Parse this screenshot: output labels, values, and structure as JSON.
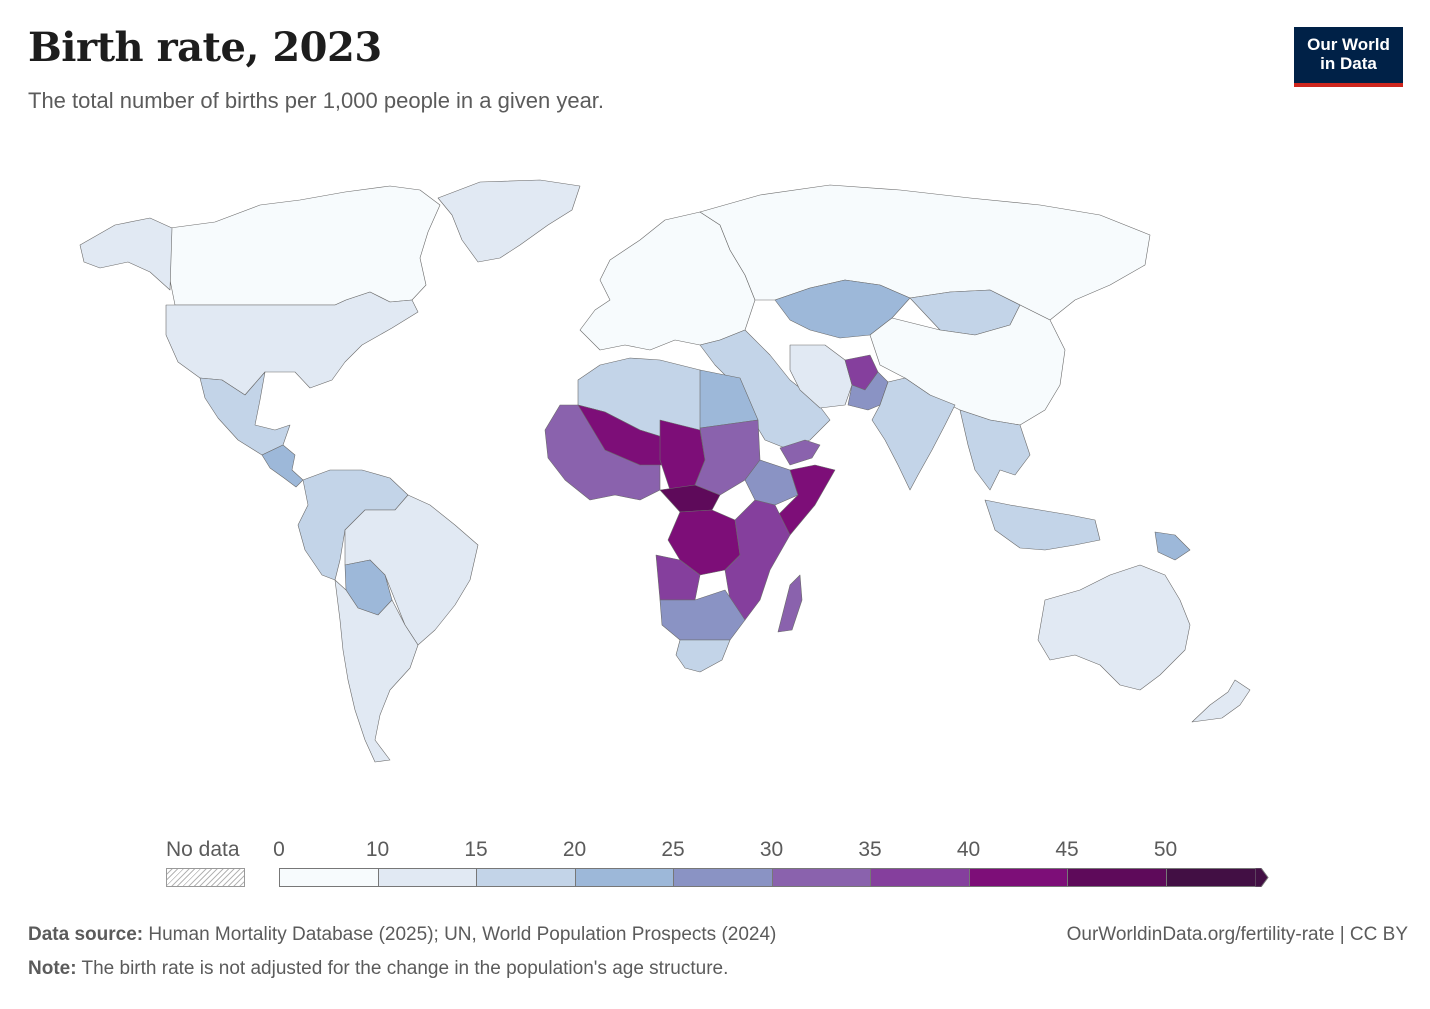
{
  "header": {
    "title": "Birth rate, 2023",
    "subtitle": "The total number of births per 1,000 people in a given year.",
    "logo_line1": "Our World",
    "logo_line2": "in Data"
  },
  "legend": {
    "no_data_label": "No data",
    "tick_labels": [
      "0",
      "10",
      "15",
      "20",
      "25",
      "30",
      "35",
      "40",
      "45",
      "50"
    ],
    "bins": [
      {
        "from": 0,
        "to": 10,
        "color": "#f7fbfd"
      },
      {
        "from": 10,
        "to": 15,
        "color": "#e1e9f3"
      },
      {
        "from": 15,
        "to": 20,
        "color": "#c3d4e8"
      },
      {
        "from": 20,
        "to": 25,
        "color": "#9db8d9"
      },
      {
        "from": 25,
        "to": 30,
        "color": "#8a93c4"
      },
      {
        "from": 30,
        "to": 35,
        "color": "#8a62ad"
      },
      {
        "from": 35,
        "to": 40,
        "color": "#853f9d"
      },
      {
        "from": 40,
        "to": 45,
        "color": "#7d0e78"
      },
      {
        "from": 45,
        "to": 50,
        "color": "#5e0a5a"
      },
      {
        "from": 50,
        "to": 55,
        "color": "#420f44"
      }
    ]
  },
  "footer": {
    "source_label": "Data source:",
    "source_text": "Human Mortality Database (2025); UN, World Population Prospects (2024)",
    "note_label": "Note:",
    "note_text": "The birth rate is not adjusted for the change in the population's age structure.",
    "url": "OurWorldinData.org/fertility-rate | CC BY"
  },
  "chart_data": {
    "type": "choropleth",
    "title": "Birth rate, 2023",
    "unit": "births per 1,000 people",
    "regions": [
      {
        "name": "Canada",
        "bin": "0-10"
      },
      {
        "name": "Alaska",
        "bin": "10-15"
      },
      {
        "name": "Greenland",
        "bin": "10-15"
      },
      {
        "name": "United States",
        "bin": "10-15"
      },
      {
        "name": "Mexico",
        "bin": "15-20"
      },
      {
        "name": "Central America",
        "bin": "20-25"
      },
      {
        "name": "Brazil",
        "bin": "10-15"
      },
      {
        "name": "Andean South America",
        "bin": "15-20"
      },
      {
        "name": "Bolivia",
        "bin": "20-25"
      },
      {
        "name": "Argentina & Chile",
        "bin": "10-15"
      },
      {
        "name": "Europe",
        "bin": "0-10"
      },
      {
        "name": "Russia",
        "bin": "0-10"
      },
      {
        "name": "Kazakhstan",
        "bin": "20-25"
      },
      {
        "name": "Mongolia",
        "bin": "15-20"
      },
      {
        "name": "China",
        "bin": "0-10"
      },
      {
        "name": "Middle East",
        "bin": "15-20"
      },
      {
        "name": "Iran",
        "bin": "10-15"
      },
      {
        "name": "Afghanistan",
        "bin": "35-40"
      },
      {
        "name": "Pakistan",
        "bin": "25-30"
      },
      {
        "name": "India",
        "bin": "15-20"
      },
      {
        "name": "Southeast Asia",
        "bin": "15-20"
      },
      {
        "name": "Indonesia",
        "bin": "15-20"
      },
      {
        "name": "Papua New Guinea",
        "bin": "20-25"
      },
      {
        "name": "Australia",
        "bin": "10-15"
      },
      {
        "name": "New Zealand",
        "bin": "10-15"
      },
      {
        "name": "North Africa",
        "bin": "15-20"
      },
      {
        "name": "Egypt",
        "bin": "20-25"
      },
      {
        "name": "West Africa",
        "bin": "30-35"
      },
      {
        "name": "Mali & Niger",
        "bin": "40-45"
      },
      {
        "name": "Chad",
        "bin": "40-45"
      },
      {
        "name": "Central African Republic",
        "bin": "45-50"
      },
      {
        "name": "Sudan",
        "bin": "30-35"
      },
      {
        "name": "Ethiopia",
        "bin": "25-30"
      },
      {
        "name": "Somalia",
        "bin": "40-45"
      },
      {
        "name": "Yemen",
        "bin": "30-35"
      },
      {
        "name": "DR Congo",
        "bin": "40-45"
      },
      {
        "name": "East Africa",
        "bin": "35-40"
      },
      {
        "name": "Angola",
        "bin": "35-40"
      },
      {
        "name": "Southern Africa",
        "bin": "25-30"
      },
      {
        "name": "South Africa",
        "bin": "15-20"
      },
      {
        "name": "Madagascar",
        "bin": "30-35"
      }
    ]
  }
}
